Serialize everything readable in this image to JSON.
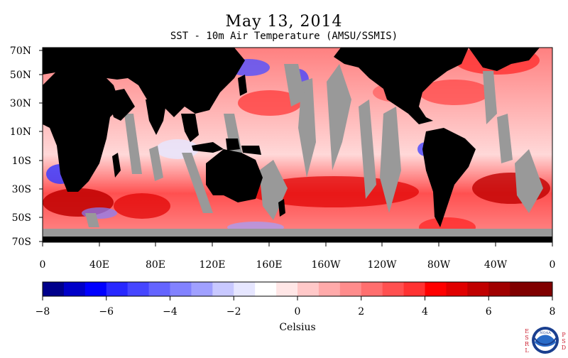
{
  "title": "May 13, 2014",
  "subtitle": "SST - 10m Air Temperature (AMSU/SSMIS)",
  "map": {
    "lat_labels": [
      "70N",
      "50N",
      "30N",
      "10N",
      "10S",
      "30S",
      "50S",
      "70S"
    ],
    "lon_labels": [
      "0",
      "40E",
      "80E",
      "120E",
      "160E",
      "160W",
      "120W",
      "80W",
      "40W",
      "0"
    ],
    "land_color": "#000000",
    "no_data_color": "#999999"
  },
  "colorbar": {
    "tick_labels": [
      "−8",
      "−6",
      "−4",
      "−2",
      "0",
      "2",
      "4",
      "6",
      "8"
    ],
    "unit_label": "Celsius",
    "range": [
      -8,
      8
    ],
    "colors": [
      "#00008b",
      "#0000c8",
      "#0000ff",
      "#2828ff",
      "#4646ff",
      "#6464ff",
      "#8282ff",
      "#a0a0ff",
      "#c8c8ff",
      "#e6e6ff",
      "#ffffff",
      "#ffe6e6",
      "#ffc8c8",
      "#ffaaaa",
      "#ff8c8c",
      "#ff6e6e",
      "#ff5050",
      "#ff3232",
      "#ff0000",
      "#e00000",
      "#c00000",
      "#a00000",
      "#800000",
      "#800000"
    ]
  },
  "logo": {
    "left_text": "ESRL",
    "right_text": "PSD",
    "center_text": "NOAA"
  }
}
